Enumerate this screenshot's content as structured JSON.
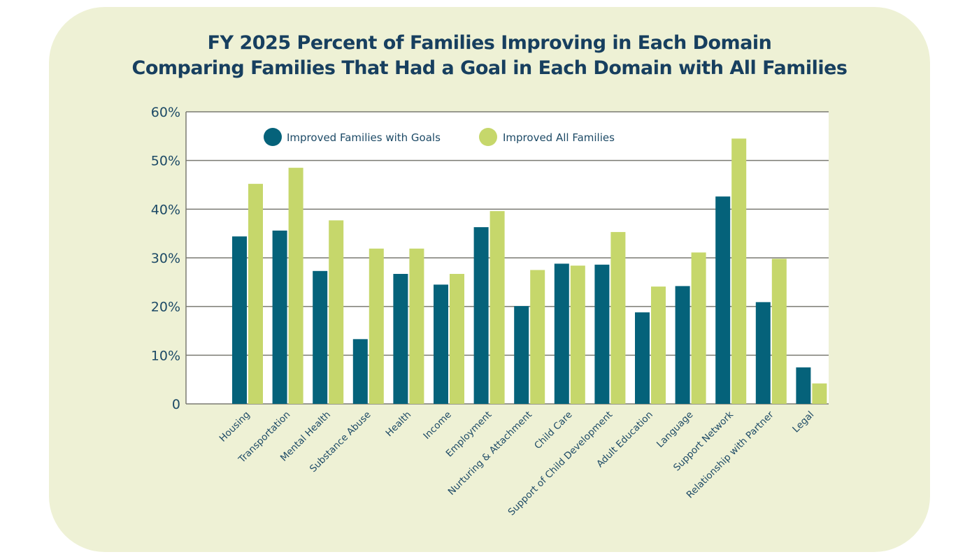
{
  "chart_data": {
    "type": "bar",
    "title": "FY 2025 Percent of Families Improving in Each Domain",
    "subtitle": "Comparing Families That Had a Goal in Each Domain with All Families",
    "xlabel": "",
    "ylabel": "",
    "ylim": [
      0,
      60
    ],
    "yticks": [
      0,
      10,
      20,
      30,
      40,
      50,
      60
    ],
    "ytick_labels": [
      "0",
      "10%",
      "20%",
      "30%",
      "40%",
      "50%",
      "60%"
    ],
    "grid": true,
    "legend_position": "top-left",
    "categories": [
      "Housing",
      "Transportation",
      "Mental Health",
      "Substance Abuse",
      "Health",
      "Income",
      "Employment",
      "Nurturing & Attachment",
      "Child Care",
      "Support of Child Development",
      "Adult Education",
      "Language",
      "Support Network",
      "Relationship with Partner",
      "Legal"
    ],
    "series": [
      {
        "name": "Improved Families with Goals",
        "color": "#05627a",
        "values": [
          34.4,
          35.6,
          27.3,
          13.3,
          26.7,
          24.5,
          36.3,
          20.1,
          28.8,
          28.6,
          18.8,
          24.2,
          42.6,
          20.9,
          7.5
        ]
      },
      {
        "name": "Improved All Families",
        "color": "#c6d76b",
        "values": [
          45.2,
          48.5,
          37.7,
          31.9,
          31.9,
          26.7,
          39.6,
          27.5,
          28.4,
          35.3,
          24.1,
          31.1,
          54.5,
          29.8,
          4.2
        ]
      }
    ]
  },
  "colors": {
    "background": "#eef1d5",
    "plot_background": "#ffffff",
    "title": "#173f5f",
    "gridline": "#7a7a72"
  }
}
